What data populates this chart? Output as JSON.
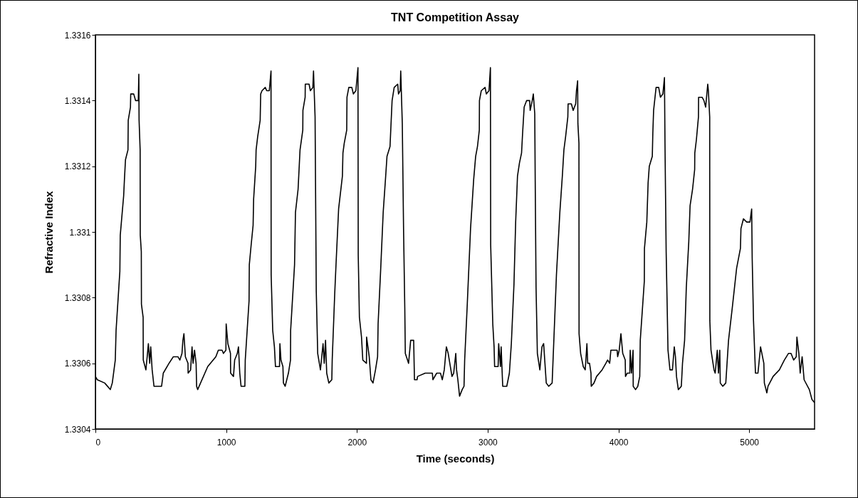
{
  "chart_data": {
    "type": "line",
    "title": "TNT Competition Assay",
    "xlabel": "Time (seconds)",
    "ylabel": "Refractive Index",
    "color": "#000000",
    "xlim": [
      0,
      5500
    ],
    "ylim": [
      1.3304,
      1.3316
    ],
    "xticks": [
      0,
      1000,
      2000,
      3000,
      4000,
      5000
    ],
    "yticks": [
      1.3304,
      1.3306,
      1.3308,
      {
        "value": 1.331,
        "label": "1.331"
      },
      1.3312,
      1.3314,
      1.3316
    ],
    "x": [
      0,
      14,
      71,
      114,
      129,
      152,
      158,
      187,
      190,
      216,
      222,
      230,
      249,
      251,
      268,
      270,
      293,
      307,
      328,
      332,
      334,
      342,
      343,
      351,
      352,
      365,
      366,
      386,
      396,
      405,
      415,
      423,
      434,
      448,
      506,
      519,
      563,
      596,
      631,
      646,
      662,
      669,
      677,
      688,
      708,
      709,
      728,
      739,
      747,
      758,
      770,
      774,
      782,
      859,
      921,
      940,
      969,
      979,
      998,
      1000,
      1013,
      1033,
      1034,
      1056,
      1065,
      1085,
      1094,
      1104,
      1114,
      1143,
      1146,
      1175,
      1177,
      1191,
      1206,
      1210,
      1226,
      1229,
      1241,
      1260,
      1264,
      1274,
      1299,
      1310,
      1330,
      1343,
      1344,
      1356,
      1369,
      1377,
      1408,
      1411,
      1419,
      1434,
      1438,
      1451,
      1476,
      1492,
      1493,
      1523,
      1530,
      1550,
      1565,
      1586,
      1587,
      1604,
      1605,
      1634,
      1644,
      1663,
      1668,
      1680,
      1689,
      1700,
      1721,
      1741,
      1750,
      1760,
      1769,
      1785,
      1808,
      1811,
      1830,
      1840,
      1860,
      1889,
      1893,
      1903,
      1922,
      1924,
      1938,
      1961,
      1973,
      1992,
      2008,
      2010,
      2019,
      2035,
      2045,
      2073,
      2074,
      2094,
      2107,
      2123,
      2142,
      2158,
      2162,
      2181,
      2201,
      2220,
      2230,
      2253,
      2269,
      2285,
      2312,
      2318,
      2331,
      2335,
      2347,
      2357,
      2366,
      2370,
      2395,
      2411,
      2434,
      2440,
      2460,
      2464,
      2522,
      2577,
      2581,
      2610,
      2639,
      2653,
      2668,
      2684,
      2698,
      2727,
      2740,
      2756,
      2762,
      2772,
      2785,
      2805,
      2819,
      2824,
      2844,
      2869,
      2893,
      2908,
      2922,
      2936,
      2937,
      2951,
      2980,
      2990,
      3010,
      3021,
      3023,
      3039,
      3049,
      3053,
      3080,
      3084,
      3098,
      3103,
      3115,
      3146,
      3166,
      3181,
      3201,
      3214,
      3228,
      3243,
      3259,
      3267,
      3279,
      3298,
      3321,
      3325,
      3341,
      3349,
      3360,
      3364,
      3370,
      3380,
      3399,
      3415,
      3428,
      3448,
      3467,
      3493,
      3526,
      3552,
      3571,
      3583,
      3596,
      3613,
      3615,
      3640,
      3654,
      3673,
      3679,
      3688,
      3690,
      3698,
      3699,
      3711,
      3731,
      3746,
      3759,
      3765,
      3779,
      3790,
      3792,
      3813,
      3833,
      3875,
      3904,
      3917,
      3933,
      3942,
      3962,
      3990,
      3994,
      4006,
      4019,
      4033,
      4052,
      4054,
      4067,
      4087,
      4090,
      4100,
      4112,
      4113,
      4131,
      4148,
      4163,
      4167,
      4198,
      4199,
      4217,
      4227,
      4236,
      4259,
      4263,
      4269,
      4288,
      4308,
      4321,
      4340,
      4352,
      4356,
      4365,
      4379,
      4394,
      4413,
      4427,
      4436,
      4444,
      4458,
      4481,
      4490,
      4506,
      4519,
      4538,
      4548,
      4567,
      4583,
      4584,
      4596,
      4612,
      4613,
      4640,
      4654,
      4667,
      4683,
      4688,
      4698,
      4699,
      4708,
      4731,
      4740,
      4756,
      4765,
      4775,
      4779,
      4798,
      4821,
      4842,
      4871,
      4904,
      4933,
      4937,
      4956,
      4981,
      5006,
      5019,
      5023,
      5033,
      5048,
      5067,
      5087,
      5112,
      5116,
      5135,
      5144,
      5183,
      5231,
      5269,
      5300,
      5320,
      5340,
      5360,
      5365,
      5380,
      5390,
      5405,
      5420,
      5460,
      5480,
      5500
    ],
    "values": [
      1.33056,
      1.33055,
      1.33054,
      1.33052,
      1.33054,
      1.33061,
      1.3307,
      1.33088,
      1.33099,
      1.33111,
      1.33116,
      1.33122,
      1.33125,
      1.33134,
      1.33138,
      1.33142,
      1.33142,
      1.3314,
      1.3314,
      1.33148,
      1.33134,
      1.33125,
      1.33099,
      1.33094,
      1.33078,
      1.33074,
      1.33061,
      1.33058,
      1.33062,
      1.33066,
      1.3306,
      1.33065,
      1.33058,
      1.33053,
      1.33053,
      1.33057,
      1.3306,
      1.33062,
      1.33062,
      1.33061,
      1.33063,
      1.33067,
      1.33069,
      1.33062,
      1.3306,
      1.33057,
      1.33058,
      1.33065,
      1.3306,
      1.33064,
      1.3306,
      1.33053,
      1.33052,
      1.33059,
      1.33062,
      1.33064,
      1.33064,
      1.33063,
      1.33064,
      1.33072,
      1.33066,
      1.33063,
      1.33057,
      1.33056,
      1.33061,
      1.33063,
      1.33065,
      1.33057,
      1.33053,
      1.33053,
      1.33061,
      1.33079,
      1.3309,
      1.33096,
      1.33102,
      1.3311,
      1.3312,
      1.33125,
      1.33129,
      1.33134,
      1.33142,
      1.33143,
      1.33144,
      1.33143,
      1.33143,
      1.33149,
      1.33087,
      1.3307,
      1.33065,
      1.33059,
      1.33059,
      1.33066,
      1.33061,
      1.33059,
      1.33054,
      1.33053,
      1.33057,
      1.33061,
      1.3307,
      1.3309,
      1.33106,
      1.33113,
      1.33125,
      1.33131,
      1.33137,
      1.33141,
      1.33145,
      1.33145,
      1.33143,
      1.33144,
      1.33149,
      1.33135,
      1.33082,
      1.33063,
      1.33058,
      1.33066,
      1.3306,
      1.33067,
      1.33057,
      1.33054,
      1.33055,
      1.33061,
      1.33081,
      1.3309,
      1.33107,
      1.33117,
      1.33124,
      1.33127,
      1.33131,
      1.33141,
      1.33144,
      1.33144,
      1.33142,
      1.33143,
      1.3315,
      1.33093,
      1.33074,
      1.33068,
      1.33061,
      1.3306,
      1.33068,
      1.33062,
      1.33055,
      1.33054,
      1.33058,
      1.33062,
      1.33072,
      1.33088,
      1.33106,
      1.33117,
      1.33123,
      1.33126,
      1.3314,
      1.33144,
      1.33145,
      1.33142,
      1.33143,
      1.33149,
      1.33133,
      1.331,
      1.33077,
      1.33063,
      1.3306,
      1.33067,
      1.33067,
      1.33055,
      1.33055,
      1.33056,
      1.33057,
      1.33057,
      1.33055,
      1.33057,
      1.33057,
      1.33055,
      1.33058,
      1.33065,
      1.33063,
      1.33056,
      1.33057,
      1.33063,
      1.33058,
      1.33055,
      1.3305,
      1.33052,
      1.33053,
      1.33061,
      1.33078,
      1.33101,
      1.33116,
      1.33123,
      1.33126,
      1.33131,
      1.3314,
      1.33143,
      1.33144,
      1.33142,
      1.33143,
      1.3315,
      1.33096,
      1.33072,
      1.33065,
      1.33059,
      1.33059,
      1.33066,
      1.33059,
      1.33065,
      1.33053,
      1.33053,
      1.33057,
      1.33066,
      1.33084,
      1.33103,
      1.33117,
      1.33121,
      1.33124,
      1.3313,
      1.33138,
      1.3314,
      1.3314,
      1.33137,
      1.3314,
      1.33142,
      1.33136,
      1.33113,
      1.33083,
      1.33063,
      1.33058,
      1.33065,
      1.33066,
      1.33054,
      1.33053,
      1.33054,
      1.33087,
      1.33106,
      1.33117,
      1.33125,
      1.33129,
      1.33135,
      1.33139,
      1.33139,
      1.33137,
      1.33139,
      1.33143,
      1.33146,
      1.33133,
      1.33127,
      1.33069,
      1.33063,
      1.33059,
      1.33058,
      1.33066,
      1.3306,
      1.3306,
      1.33057,
      1.33053,
      1.33054,
      1.33056,
      1.33058,
      1.3306,
      1.33061,
      1.3306,
      1.33064,
      1.33064,
      1.33064,
      1.33062,
      1.33064,
      1.33069,
      1.33063,
      1.33061,
      1.33056,
      1.33057,
      1.33057,
      1.33064,
      1.33057,
      1.33064,
      1.33053,
      1.33052,
      1.33053,
      1.33056,
      1.33067,
      1.33085,
      1.33095,
      1.33103,
      1.33115,
      1.3312,
      1.33123,
      1.3313,
      1.33137,
      1.33144,
      1.33144,
      1.33141,
      1.33142,
      1.33147,
      1.33127,
      1.33094,
      1.33064,
      1.33058,
      1.33058,
      1.33065,
      1.33062,
      1.33056,
      1.33052,
      1.33053,
      1.3306,
      1.33067,
      1.33083,
      1.33097,
      1.33108,
      1.33113,
      1.33119,
      1.33124,
      1.33128,
      1.33135,
      1.33141,
      1.33141,
      1.3314,
      1.33138,
      1.33145,
      1.33143,
      1.33135,
      1.33073,
      1.33064,
      1.33058,
      1.33057,
      1.33064,
      1.33057,
      1.33064,
      1.33054,
      1.33053,
      1.33054,
      1.33067,
      1.33077,
      1.33089,
      1.33095,
      1.33101,
      1.33104,
      1.33103,
      1.33103,
      1.33107,
      1.33092,
      1.33073,
      1.33057,
      1.33057,
      1.33065,
      1.3306,
      1.33054,
      1.33051,
      1.33053,
      1.33056,
      1.33058,
      1.33061,
      1.33063,
      1.33063,
      1.33061,
      1.33062,
      1.33068,
      1.33063,
      1.33057,
      1.33062,
      1.33055,
      1.33052,
      1.33049,
      1.33048
    ]
  }
}
